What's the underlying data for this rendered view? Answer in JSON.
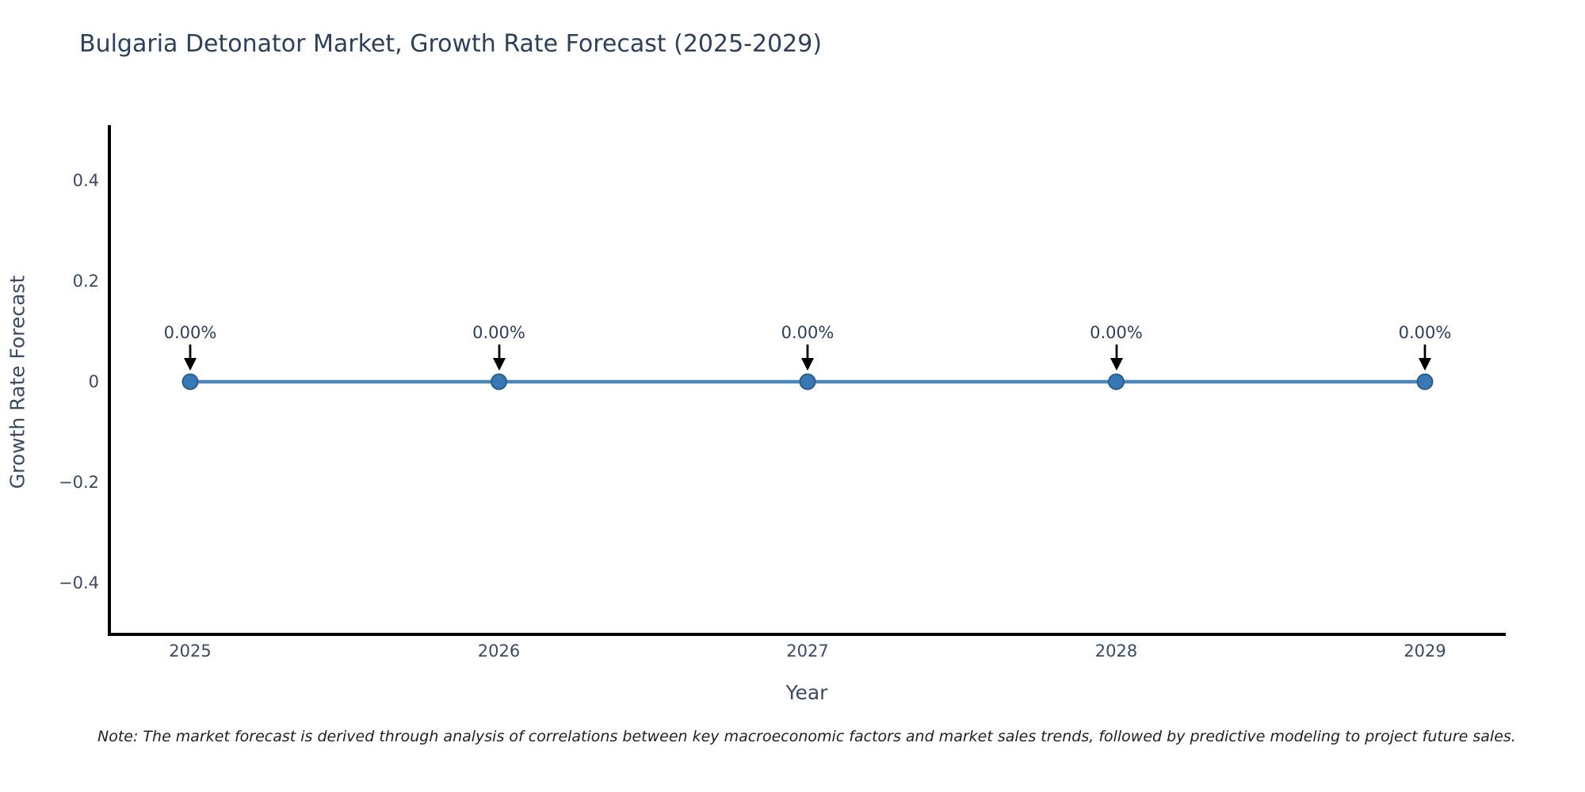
{
  "colors": {
    "title_text": "#2e3f5c",
    "axis_text": "#3c4a63",
    "spine": "#000000",
    "line": "#4a86b8",
    "marker_fill": "#3878b4",
    "marker_edge": "#2a5d8a",
    "arrow": "#000000",
    "note_text": "#1f1f1f"
  },
  "footnote": "Note: The market forecast is derived through analysis of correlations between key macroeconomic factors and market sales trends, followed by predictive modeling to project future sales.",
  "chart_data": {
    "type": "line",
    "title": "Bulgaria Detonator Market, Growth Rate Forecast (2025-2029)",
    "xlabel": "Year",
    "ylabel": "Growth Rate Forecast",
    "x": [
      2025,
      2026,
      2027,
      2028,
      2029
    ],
    "categories": [
      "2025",
      "2026",
      "2027",
      "2028",
      "2029"
    ],
    "values": [
      0,
      0,
      0,
      0,
      0
    ],
    "point_labels": [
      "0.00%",
      "0.00%",
      "0.00%",
      "0.00%",
      "0.00%"
    ],
    "yticks": [
      {
        "value": 0.4,
        "label": "0.4"
      },
      {
        "value": 0.2,
        "label": "0.2"
      },
      {
        "value": 0,
        "label": "0"
      },
      {
        "value": -0.2,
        "label": "−0.2"
      },
      {
        "value": -0.4,
        "label": "−0.4"
      }
    ],
    "ylim": [
      -0.5,
      0.5
    ],
    "grid": false,
    "legend": false,
    "annotations_arrow": "down-arrow"
  }
}
